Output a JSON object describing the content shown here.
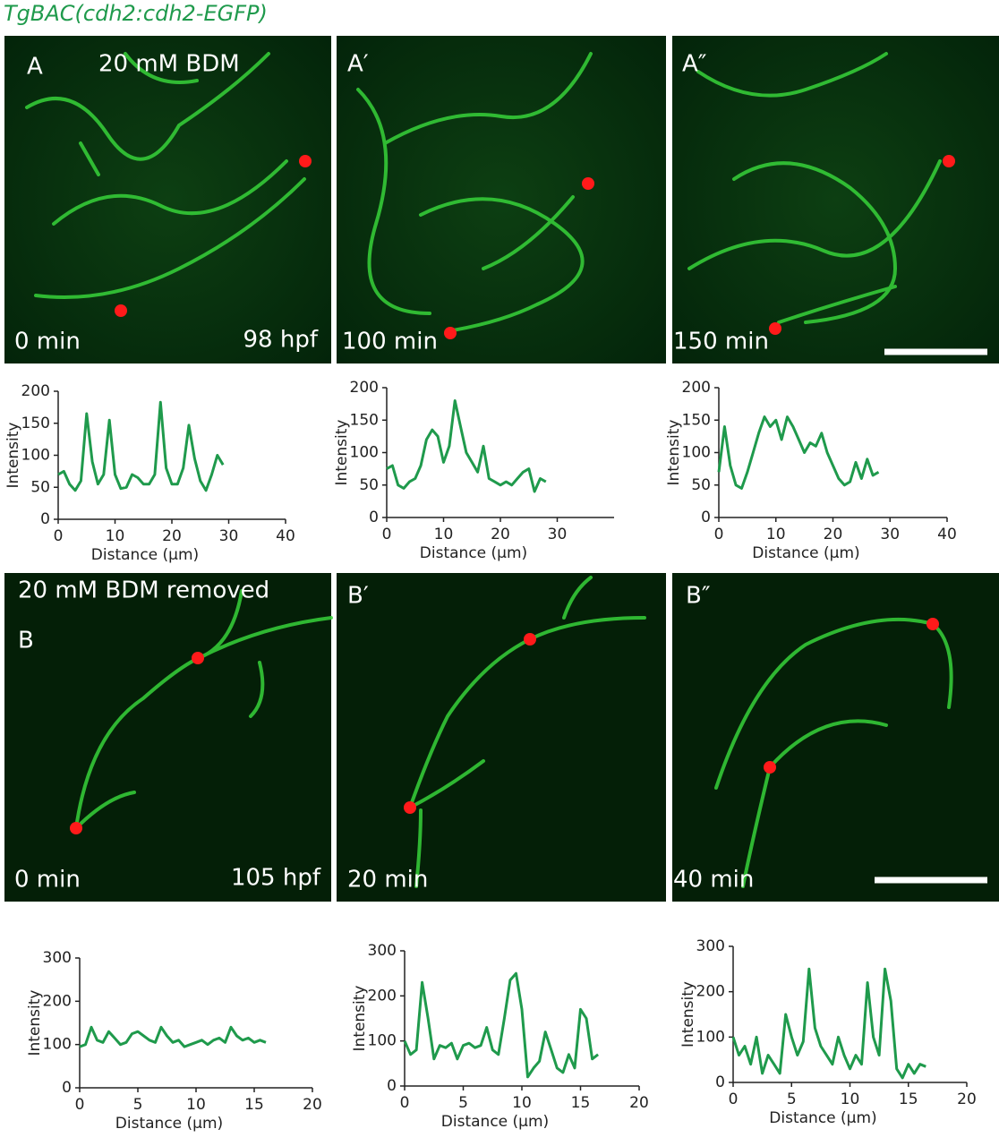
{
  "title": "TgBAC(cdh2:cdh2-EGFP)",
  "panels": [
    {
      "letter": "A",
      "condition": "20 mM BDM",
      "time": "0 min",
      "stage": "98 hpf"
    },
    {
      "letter": "A′",
      "time": "100 min"
    },
    {
      "letter": "A″",
      "time": "150 min"
    },
    {
      "letter": "B",
      "condition": "20 mM BDM removed",
      "time": "0 min",
      "stage": "105 hpf"
    },
    {
      "letter": "B′",
      "time": "20 min"
    },
    {
      "letter": "B″",
      "time": "40 min"
    }
  ],
  "chart_data": [
    {
      "type": "line",
      "xlabel": "Distance (μm)",
      "ylabel": "Intensity",
      "color": "#1f9a4c",
      "x": [
        0,
        1,
        2,
        3,
        4,
        5,
        6,
        7,
        8,
        9,
        10,
        11,
        12,
        13,
        14,
        15,
        16,
        17,
        18,
        19,
        20,
        21,
        22,
        23,
        24,
        25,
        26,
        27,
        28,
        29
      ],
      "values": [
        70,
        75,
        55,
        45,
        60,
        165,
        90,
        55,
        70,
        155,
        70,
        48,
        50,
        70,
        65,
        55,
        55,
        70,
        183,
        80,
        55,
        55,
        80,
        147,
        95,
        60,
        45,
        70,
        100,
        85
      ],
      "xlim": [
        0,
        40
      ],
      "xticks": [
        0,
        10,
        20,
        30,
        40
      ],
      "ylim": [
        0,
        200
      ],
      "yticks": [
        0,
        50,
        100,
        150,
        200
      ]
    },
    {
      "type": "line",
      "xlabel": "Distance (μm)",
      "ylabel": "Intensity",
      "color": "#1f9a4c",
      "x": [
        0,
        1,
        2,
        3,
        4,
        5,
        6,
        7,
        8,
        9,
        10,
        11,
        12,
        13,
        14,
        15,
        16,
        17,
        18,
        19,
        20,
        21,
        22,
        23,
        24,
        25,
        26,
        27,
        28
      ],
      "values": [
        75,
        80,
        50,
        45,
        55,
        60,
        80,
        120,
        135,
        125,
        85,
        110,
        180,
        140,
        100,
        85,
        70,
        110,
        60,
        55,
        50,
        55,
        50,
        60,
        70,
        75,
        40,
        60,
        55
      ],
      "xlim": [
        0,
        40
      ],
      "xticks": [
        0,
        10,
        20,
        30
      ],
      "ylim": [
        0,
        200
      ],
      "yticks": [
        0,
        50,
        100,
        150,
        200
      ]
    },
    {
      "type": "line",
      "xlabel": "Distance (μm)",
      "ylabel": "Intensity",
      "color": "#1f9a4c",
      "x": [
        0,
        1,
        2,
        3,
        4,
        5,
        6,
        7,
        8,
        9,
        10,
        11,
        12,
        13,
        14,
        15,
        16,
        17,
        18,
        19,
        20,
        21,
        22,
        23,
        24,
        25,
        26,
        27,
        28
      ],
      "values": [
        70,
        140,
        80,
        50,
        45,
        70,
        100,
        130,
        155,
        140,
        150,
        120,
        155,
        140,
        120,
        100,
        115,
        110,
        130,
        100,
        80,
        60,
        50,
        55,
        85,
        60,
        90,
        65,
        70
      ],
      "xlim": [
        0,
        40
      ],
      "xticks": [
        0,
        10,
        20,
        30,
        40
      ],
      "ylim": [
        0,
        200
      ],
      "yticks": [
        0,
        50,
        100,
        150,
        200
      ]
    },
    {
      "type": "line",
      "xlabel": "Distance (μm)",
      "ylabel": "Intensity",
      "color": "#1f9a4c",
      "x": [
        0,
        0.5,
        1,
        1.5,
        2,
        2.5,
        3,
        3.5,
        4,
        4.5,
        5,
        5.5,
        6,
        6.5,
        7,
        7.5,
        8,
        8.5,
        9,
        9.5,
        10,
        10.5,
        11,
        11.5,
        12,
        12.5,
        13,
        13.5,
        14,
        14.5,
        15,
        15.5,
        16
      ],
      "values": [
        95,
        100,
        140,
        110,
        105,
        130,
        115,
        100,
        105,
        125,
        130,
        120,
        110,
        105,
        140,
        120,
        105,
        110,
        95,
        100,
        105,
        110,
        100,
        110,
        115,
        105,
        140,
        120,
        110,
        115,
        105,
        110,
        105
      ],
      "xlim": [
        0,
        20
      ],
      "xticks": [
        0,
        5,
        10,
        15,
        20
      ],
      "ylim": [
        0,
        300
      ],
      "yticks": [
        0,
        100,
        200,
        300
      ]
    },
    {
      "type": "line",
      "xlabel": "Distance (μm)",
      "ylabel": "Intensity",
      "color": "#1f9a4c",
      "x": [
        0,
        0.5,
        1,
        1.5,
        2,
        2.5,
        3,
        3.5,
        4,
        4.5,
        5,
        5.5,
        6,
        6.5,
        7,
        7.5,
        8,
        8.5,
        9,
        9.5,
        10,
        10.5,
        11,
        11.5,
        12,
        12.5,
        13,
        13.5,
        14,
        14.5,
        15,
        15.5,
        16,
        16.5
      ],
      "values": [
        100,
        70,
        80,
        230,
        150,
        60,
        90,
        85,
        95,
        60,
        90,
        95,
        85,
        90,
        130,
        80,
        70,
        150,
        235,
        250,
        170,
        20,
        40,
        55,
        120,
        80,
        40,
        30,
        70,
        40,
        170,
        150,
        60,
        70
      ],
      "xlim": [
        0,
        20
      ],
      "xticks": [
        0,
        5,
        10,
        15,
        20
      ],
      "ylim": [
        0,
        300
      ],
      "yticks": [
        0,
        100,
        200,
        300
      ]
    },
    {
      "type": "line",
      "xlabel": "Distance (μm)",
      "ylabel": "Intensity",
      "color": "#1f9a4c",
      "x": [
        0,
        0.5,
        1,
        1.5,
        2,
        2.5,
        3,
        3.5,
        4,
        4.5,
        5,
        5.5,
        6,
        6.5,
        7,
        7.5,
        8,
        8.5,
        9,
        9.5,
        10,
        10.5,
        11,
        11.5,
        12,
        12.5,
        13,
        13.5,
        14,
        14.5,
        15,
        15.5,
        16,
        16.5
      ],
      "values": [
        100,
        60,
        80,
        40,
        100,
        20,
        60,
        40,
        20,
        150,
        100,
        60,
        90,
        250,
        120,
        80,
        60,
        40,
        100,
        60,
        30,
        60,
        40,
        220,
        100,
        60,
        250,
        180,
        30,
        10,
        40,
        20,
        40,
        35
      ],
      "xlim": [
        0,
        20
      ],
      "xticks": [
        0,
        5,
        10,
        15,
        20
      ],
      "ylim": [
        0,
        300
      ],
      "yticks": [
        0,
        100,
        200,
        300
      ]
    }
  ]
}
